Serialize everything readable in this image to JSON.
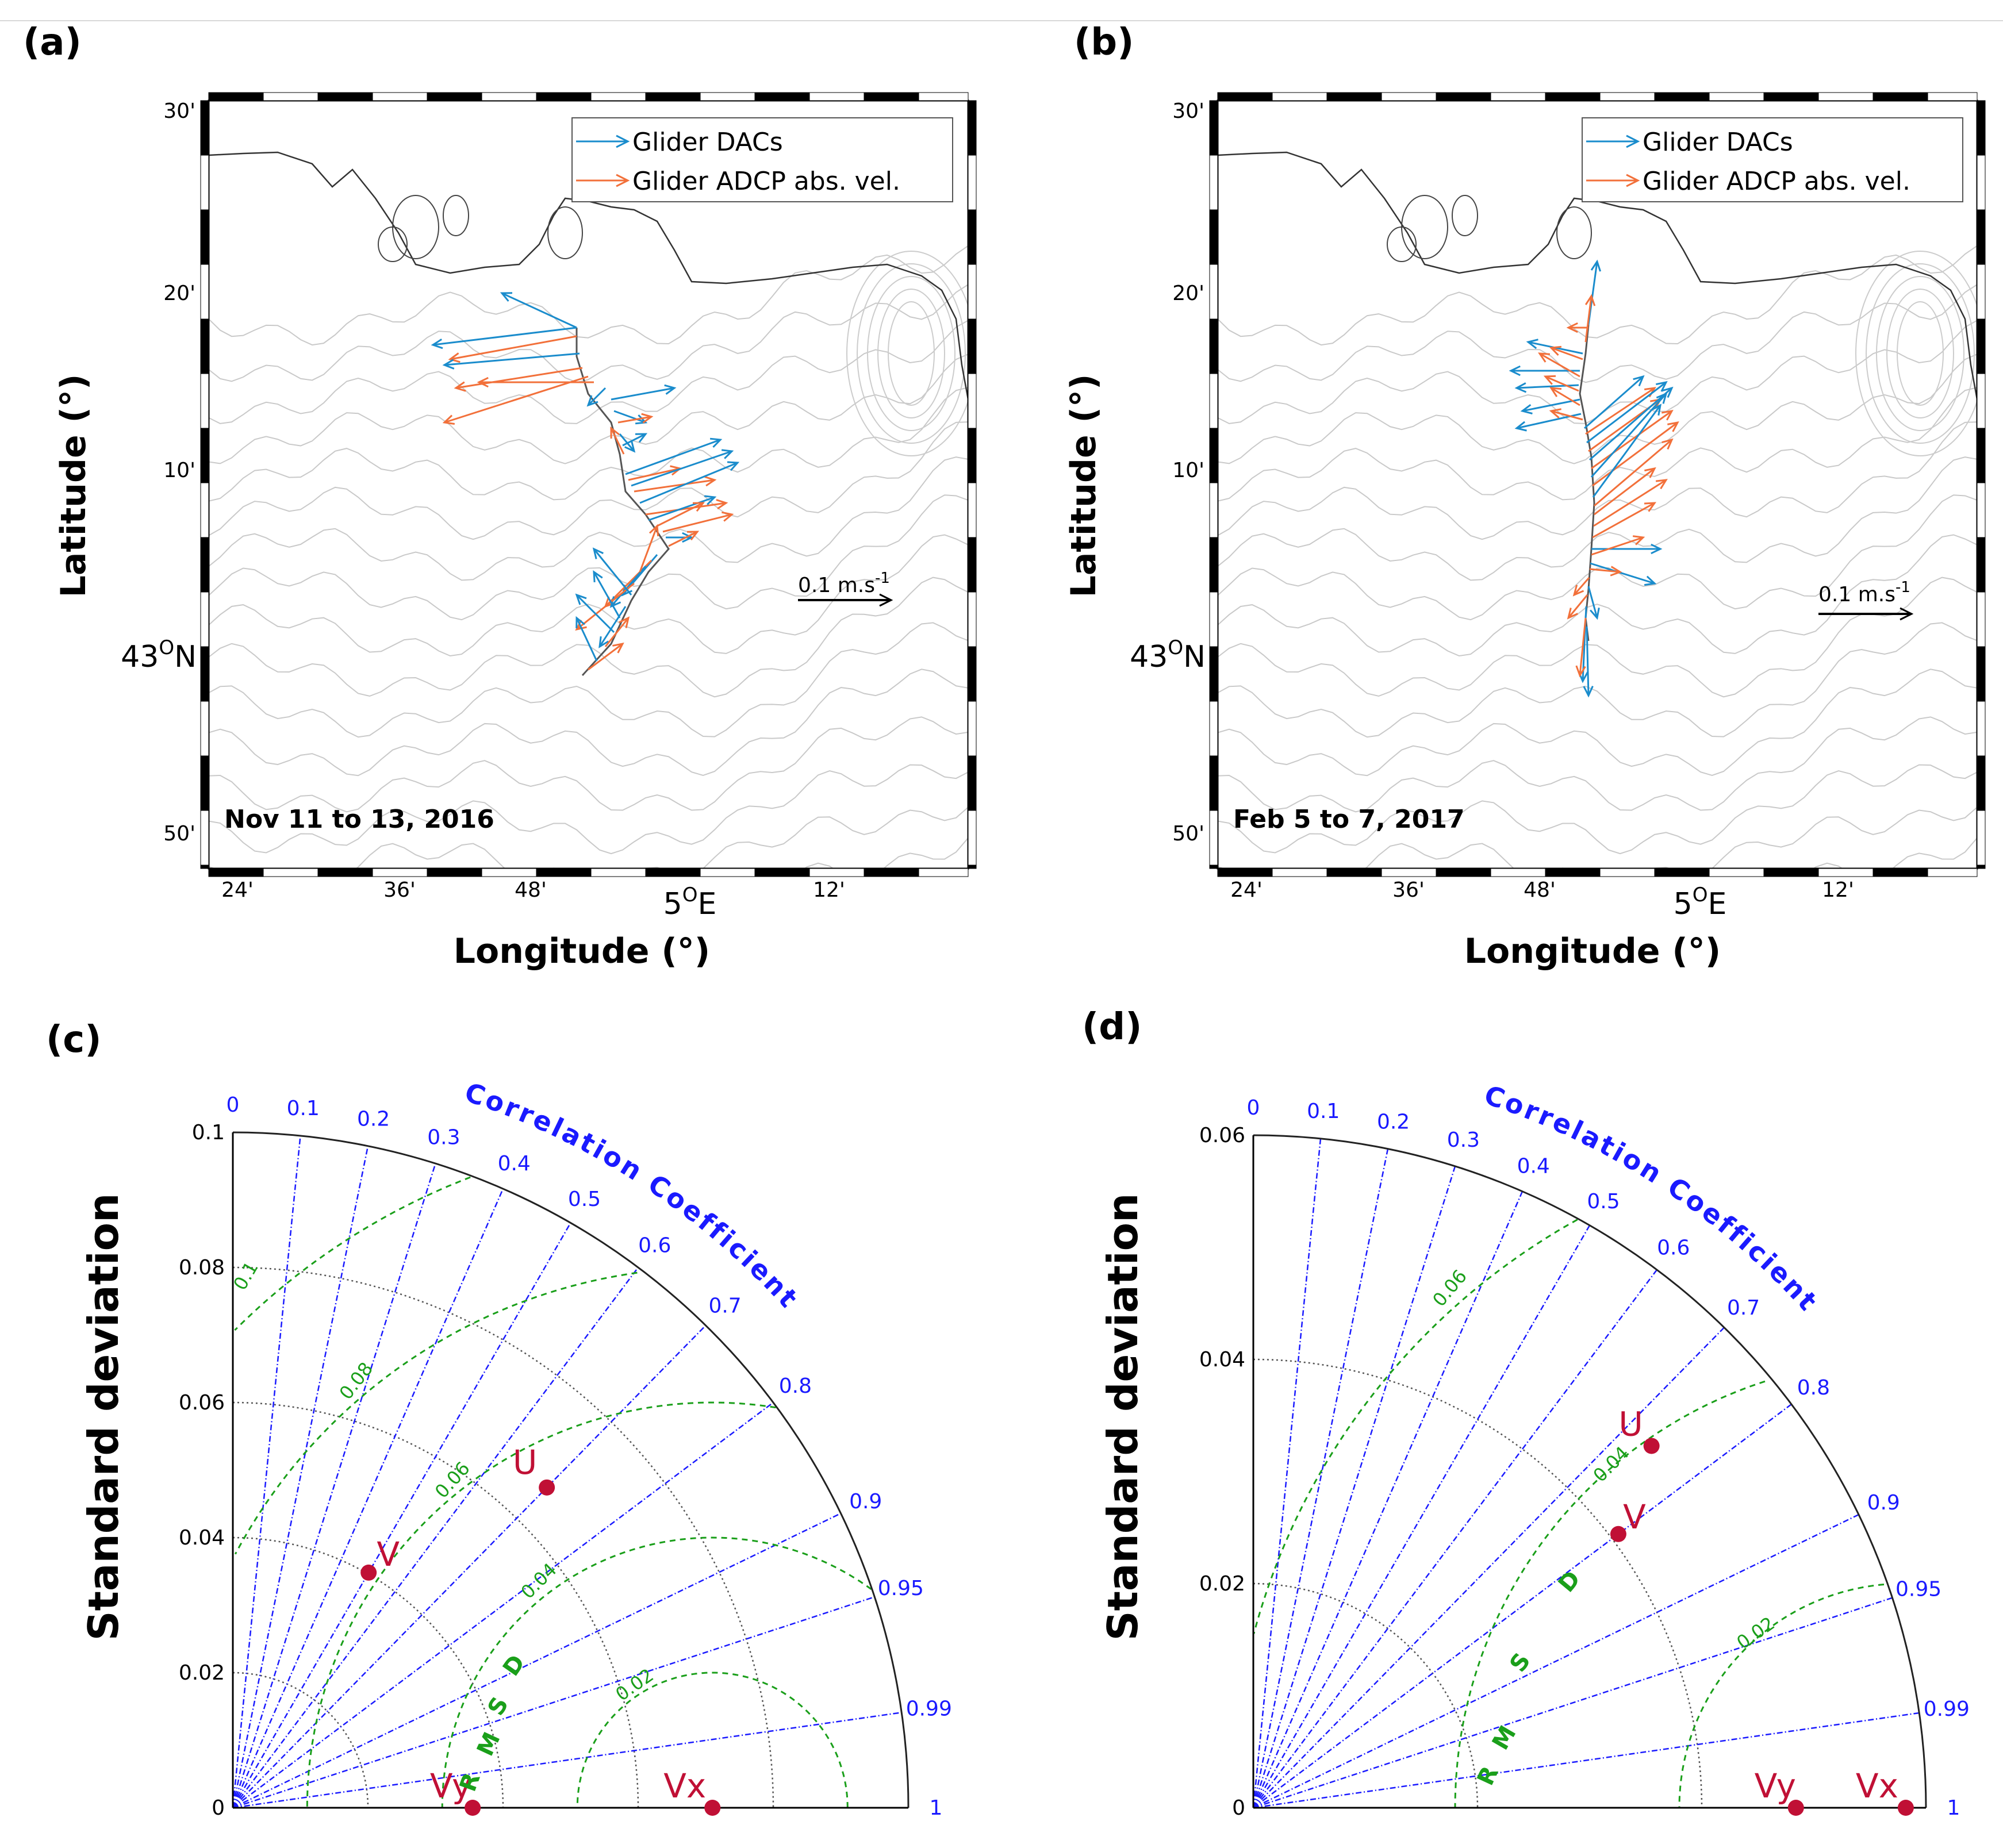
{
  "panels": {
    "a": {
      "label": "(a)",
      "date": "Nov 11 to 13, 2016",
      "lat_ticks": [
        "30'",
        "20'",
        "10'",
        "43°N",
        "50'"
      ],
      "lat_main_index": 3,
      "lat_main_deg": "43",
      "lat_main_hemi": "N",
      "lon_ticks": [
        "24'",
        "36'",
        "48'",
        "12'"
      ],
      "lon_main_deg": "5",
      "lon_main_hemi": "E",
      "xlabel": "Longitude (°)",
      "ylabel": "Latitude (°)",
      "legend": [
        "Glider DACs",
        "Glider ADCP abs. vel."
      ],
      "scale_label": "0.1 m.s",
      "scale_exp": "-1"
    },
    "b": {
      "label": "(b)",
      "date": "Feb 5 to 7, 2017",
      "lat_ticks": [
        "30'",
        "20'",
        "10'",
        "43°N",
        "50'"
      ],
      "lat_main_deg": "43",
      "lat_main_hemi": "N",
      "lon_ticks": [
        "24'",
        "36'",
        "48'",
        "12'"
      ],
      "lon_main_deg": "5",
      "lon_main_hemi": "E",
      "xlabel": "Longitude (°)",
      "ylabel": "Latitude (°)",
      "legend": [
        "Glider DACs",
        "Glider ADCP abs. vel."
      ],
      "scale_label": "0.1 m.s",
      "scale_exp": "-1"
    },
    "c": {
      "label": "(c)",
      "ylabel": "Standard deviation",
      "corr_title": "Correlation Coefficient",
      "rmsd_label": "RMSD"
    },
    "d": {
      "label": "(d)",
      "ylabel": "Standard deviation",
      "corr_title": "Correlation Coefficient",
      "rmsd_label": "RMSD"
    }
  },
  "colors": {
    "dac": "#1a8ccc",
    "adcp": "#f2703a",
    "corr": "#1a1aff",
    "rmsd": "#1a9f1a",
    "point": "#c01035"
  },
  "chart_data": [
    {
      "panel": "a",
      "type": "vector-map",
      "title": "Nov 11 to 13, 2016",
      "xlabel": "Longitude (°)",
      "ylabel": "Latitude (°)",
      "series": [
        {
          "name": "Glider DACs",
          "color": "#1a8ccc"
        },
        {
          "name": "Glider ADCP abs. vel.",
          "color": "#f2703a"
        }
      ],
      "scale": "0.1 m.s-1"
    },
    {
      "panel": "b",
      "type": "vector-map",
      "title": "Feb 5 to 7, 2017",
      "xlabel": "Longitude (°)",
      "ylabel": "Latitude (°)",
      "series": [
        {
          "name": "Glider DACs",
          "color": "#1a8ccc"
        },
        {
          "name": "Glider ADCP abs. vel.",
          "color": "#f2703a"
        }
      ],
      "scale": "0.1 m.s-1"
    },
    {
      "panel": "c",
      "type": "taylor",
      "ylabel": "Standard deviation",
      "sd_max": 0.1,
      "sd_ticks": [
        0,
        0.02,
        0.04,
        0.06,
        0.08,
        0.1
      ],
      "sd_tick_labels": [
        "0",
        "0.02",
        "0.04",
        "0.06",
        "0.08",
        "0.1"
      ],
      "corr_ticks": [
        0,
        0.1,
        0.2,
        0.3,
        0.4,
        0.5,
        0.6,
        0.7,
        0.8,
        0.9,
        0.95,
        0.99,
        1
      ],
      "corr_tick_labels": [
        "0",
        "0.1",
        "0.2",
        "0.3",
        "0.4",
        "0.5",
        "0.6",
        "0.7",
        "0.8",
        "0.9",
        "0.95",
        "0.99",
        "1"
      ],
      "ref_sd": 0.071,
      "rmsd_levels": [
        0.02,
        0.04,
        0.06,
        0.08,
        0.1
      ],
      "rmsd_labels": [
        "0.02",
        "0.04",
        "0.06",
        "0.08",
        "0.1"
      ],
      "points": [
        {
          "name": "U",
          "sd": 0.0664,
          "corr": 0.7
        },
        {
          "name": "V",
          "sd": 0.0402,
          "corr": 0.5
        },
        {
          "name": "Vy",
          "sd": 0.0355,
          "corr": 1.0
        },
        {
          "name": "Vx",
          "sd": 0.071,
          "corr": 1.0
        }
      ]
    },
    {
      "panel": "d",
      "type": "taylor",
      "ylabel": "Standard deviation",
      "sd_max": 0.06,
      "sd_ticks": [
        0,
        0.02,
        0.04,
        0.06
      ],
      "sd_tick_labels": [
        "0",
        "0.02",
        "0.04",
        "0.06"
      ],
      "corr_ticks": [
        0,
        0.1,
        0.2,
        0.3,
        0.4,
        0.5,
        0.6,
        0.7,
        0.8,
        0.9,
        0.95,
        0.99,
        1
      ],
      "corr_tick_labels": [
        "0",
        "0.1",
        "0.2",
        "0.3",
        "0.4",
        "0.5",
        "0.6",
        "0.7",
        "0.8",
        "0.9",
        "0.95",
        "0.99",
        "1"
      ],
      "ref_sd": 0.058,
      "rmsd_levels": [
        0.02,
        0.04,
        0.06
      ],
      "rmsd_labels": [
        "0.02",
        "0.04",
        "0.06"
      ],
      "points": [
        {
          "name": "U",
          "sd": 0.048,
          "corr": 0.74
        },
        {
          "name": "V",
          "sd": 0.0407,
          "corr": 0.8
        },
        {
          "name": "Vy",
          "sd": 0.0484,
          "corr": 1.0
        },
        {
          "name": "Vx",
          "sd": 0.0582,
          "corr": 1.0
        }
      ]
    }
  ]
}
